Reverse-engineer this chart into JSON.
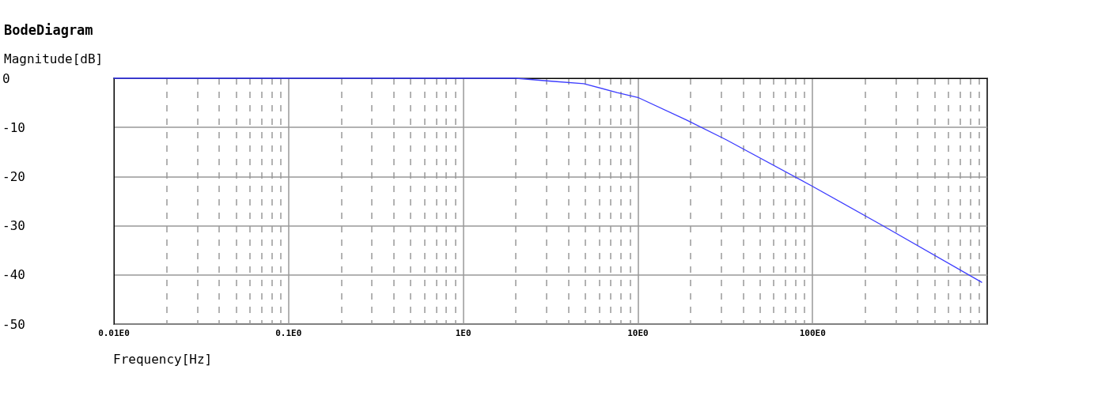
{
  "chart_data": {
    "type": "line",
    "title": "BodeDiagram",
    "ylabel": "Magnitude[dB]",
    "xlabel": "Frequency[Hz]",
    "log": "x",
    "grid": true,
    "marker": "none",
    "line_style": "solid",
    "xlim": [
      0.01,
      1000
    ],
    "xticks": [
      {
        "value": 0.01,
        "label": "0.01E0"
      },
      {
        "value": 0.1,
        "label": "0.1E0"
      },
      {
        "value": 1,
        "label": "1E0"
      },
      {
        "value": 10,
        "label": "10E0"
      },
      {
        "value": 100,
        "label": "100E0"
      }
    ],
    "ylim": [
      -50,
      0
    ],
    "yticks": [
      0,
      -10,
      -20,
      -30,
      -40,
      -50
    ],
    "series": [
      {
        "color": "#3c3cff",
        "x": [
          0.01,
          2,
          3.2,
          4.9,
          7.6,
          10,
          19,
          32,
          99,
          250,
          930
        ],
        "values": [
          0,
          0,
          -0.6,
          -1.1,
          -2.9,
          -3.9,
          -8.5,
          -12.5,
          -21.9,
          -29.9,
          -41.5
        ]
      }
    ]
  }
}
